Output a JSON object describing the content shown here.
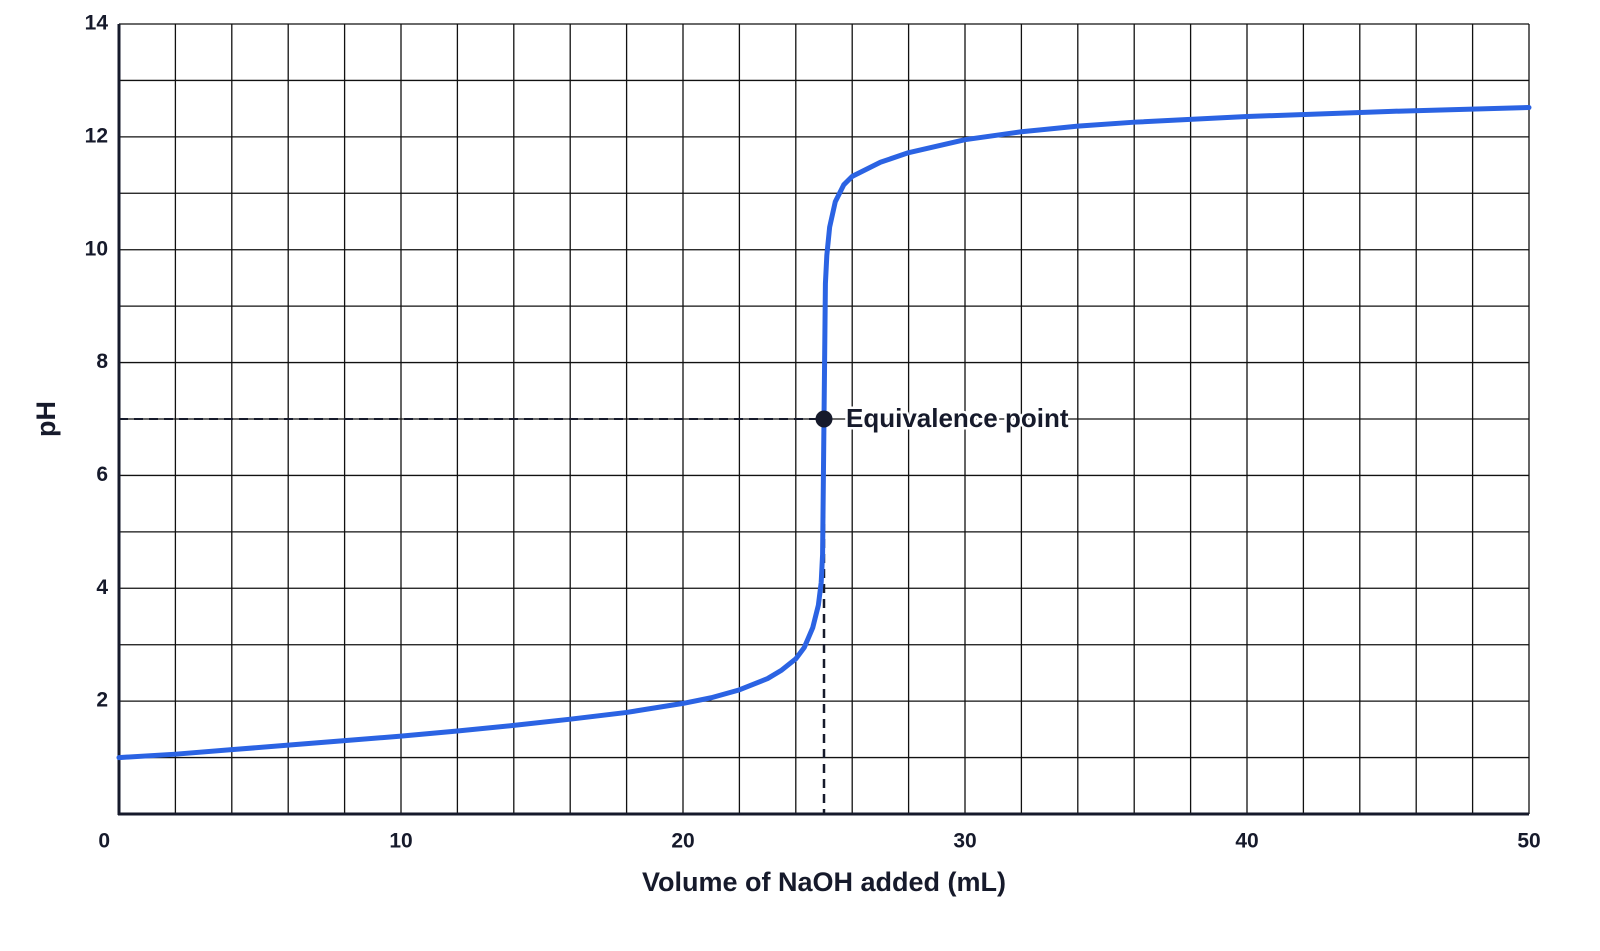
{
  "chart_data": {
    "type": "line",
    "x_label": "Volume of NaOH added (mL)",
    "y_label": "pH",
    "x": [
      0,
      2,
      4,
      6,
      8,
      10,
      12,
      14,
      16,
      18,
      20,
      21,
      22,
      23,
      23.5,
      24,
      24.3,
      24.6,
      24.8,
      24.9,
      24.95,
      25,
      25.05,
      25.1,
      25.2,
      25.4,
      25.7,
      26,
      27,
      28,
      30,
      32,
      34,
      36,
      40,
      45,
      50
    ],
    "values": [
      1.0,
      1.06,
      1.14,
      1.22,
      1.3,
      1.38,
      1.47,
      1.57,
      1.68,
      1.8,
      1.96,
      2.06,
      2.2,
      2.4,
      2.55,
      2.75,
      2.95,
      3.3,
      3.7,
      4.1,
      4.6,
      7.0,
      9.4,
      9.9,
      10.4,
      10.85,
      11.15,
      11.3,
      11.55,
      11.72,
      11.95,
      12.09,
      12.19,
      12.26,
      12.36,
      12.45,
      12.52
    ],
    "color": "#2b63e3",
    "xlim": [
      0,
      50
    ],
    "xticks": [
      0,
      10,
      20,
      30,
      40,
      50
    ],
    "ylim": [
      0,
      14
    ],
    "yticks": [
      2,
      4,
      6,
      8,
      10,
      12,
      14
    ],
    "grid": true,
    "minor_grid": {
      "x": 2,
      "y": 1
    },
    "annotation": {
      "text": "Equivalence point",
      "x": 25,
      "y": 7
    }
  }
}
